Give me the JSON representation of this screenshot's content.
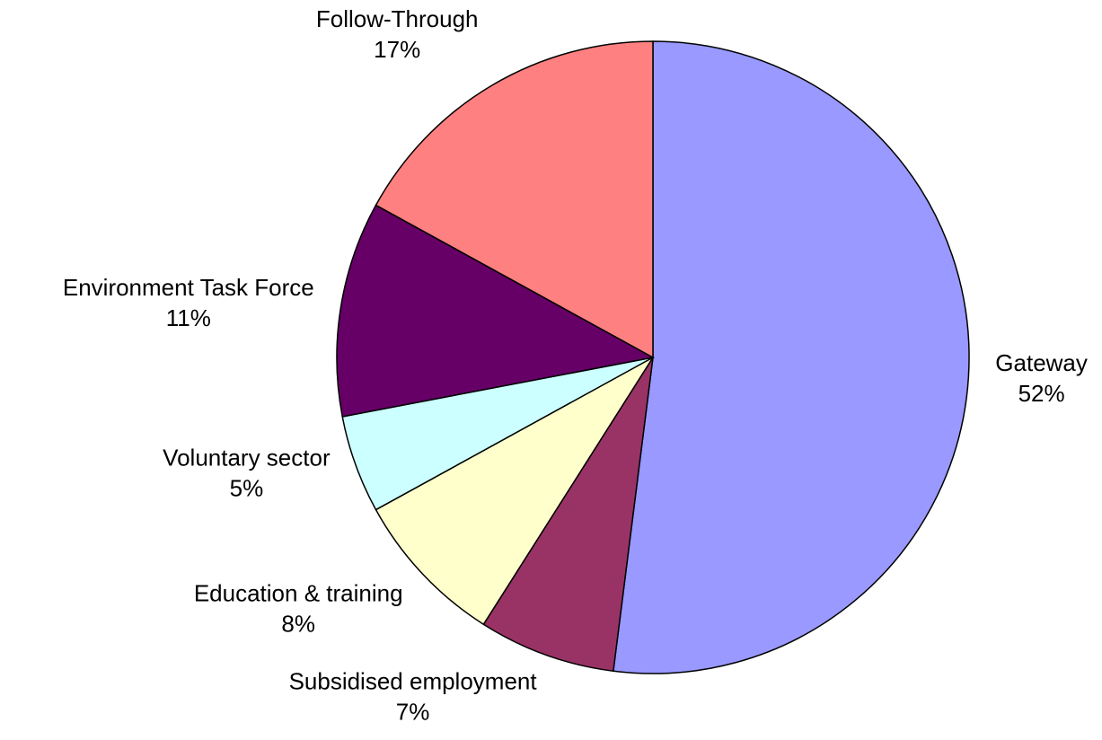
{
  "chart_data": {
    "type": "pie",
    "title": "",
    "start_angle_deg": 0,
    "direction": "clockwise",
    "slices": [
      {
        "label": "Gateway",
        "value": 52,
        "value_label": "52%",
        "color": "#9999FF"
      },
      {
        "label": "Subsidised employment",
        "value": 7,
        "value_label": "7%",
        "color": "#993366"
      },
      {
        "label": "Education & training",
        "value": 8,
        "value_label": "8%",
        "color": "#FFFFCC"
      },
      {
        "label": "Voluntary sector",
        "value": 5,
        "value_label": "5%",
        "color": "#CCFFFF"
      },
      {
        "label": "Environment Task Force",
        "value": 11,
        "value_label": "11%",
        "color": "#660066"
      },
      {
        "label": "Follow-Through",
        "value": 17,
        "value_label": "17%",
        "color": "#FF8080"
      }
    ]
  }
}
